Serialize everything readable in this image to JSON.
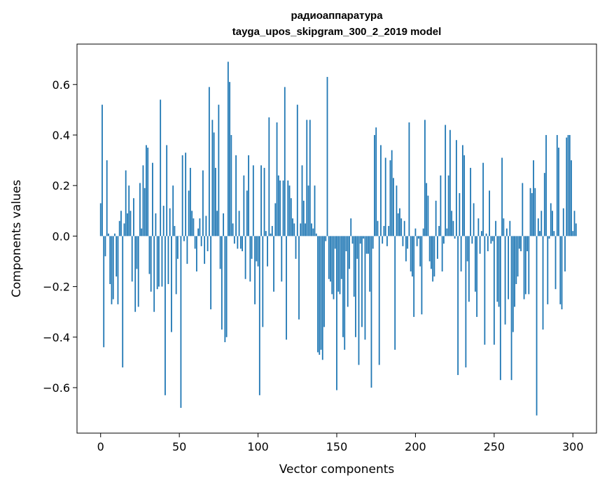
{
  "chart_data": {
    "type": "bar",
    "title": "радиоаппаратура",
    "subtitle": "tayga_upos_skipgram_300_2_2019 model",
    "xlabel": "Vector components",
    "ylabel": "Components values",
    "xlim": [
      -15,
      315
    ],
    "ylim": [
      -0.78,
      0.76
    ],
    "xticks": [
      0,
      50,
      100,
      150,
      200,
      250,
      300
    ],
    "yticks": [
      -0.6,
      -0.4,
      -0.2,
      0.0,
      0.2,
      0.4,
      0.6
    ],
    "xtick_labels": [
      "0",
      "50",
      "100",
      "150",
      "200",
      "250",
      "300"
    ],
    "ytick_labels": [
      "−0.6",
      "−0.4",
      "−0.2",
      "0.0",
      "0.2",
      "0.4",
      "0.6"
    ],
    "grid": false,
    "bar_color": "#1f77b4",
    "x_start": 0,
    "values": [
      0.13,
      0.52,
      -0.44,
      -0.08,
      0.3,
      0.01,
      -0.19,
      -0.27,
      -0.25,
      0.01,
      -0.16,
      -0.27,
      0.06,
      0.1,
      -0.52,
      0.05,
      0.26,
      0.09,
      0.2,
      0.1,
      -0.18,
      0.15,
      -0.3,
      -0.13,
      -0.28,
      0.21,
      0.03,
      0.28,
      0.19,
      0.36,
      0.35,
      -0.15,
      -0.22,
      0.29,
      -0.3,
      0.09,
      -0.21,
      -0.2,
      0.54,
      -0.2,
      0.12,
      -0.63,
      0.36,
      -0.19,
      0.11,
      -0.38,
      0.2,
      0.04,
      -0.23,
      -0.09,
      0.0,
      -0.68,
      0.32,
      -0.02,
      0.33,
      -0.11,
      0.18,
      0.27,
      0.1,
      0.07,
      -0.05,
      -0.14,
      0.03,
      0.07,
      -0.04,
      0.26,
      -0.11,
      0.08,
      -0.06,
      0.59,
      -0.29,
      0.46,
      0.41,
      0.27,
      0.1,
      0.52,
      -0.13,
      -0.37,
      0.09,
      -0.42,
      -0.4,
      0.69,
      0.61,
      0.4,
      0.05,
      -0.03,
      0.32,
      -0.05,
      0.1,
      -0.05,
      -0.06,
      0.24,
      -0.17,
      0.18,
      0.32,
      -0.18,
      -0.09,
      0.28,
      -0.27,
      -0.1,
      -0.12,
      -0.63,
      0.28,
      -0.36,
      0.27,
      0.02,
      -0.12,
      0.47,
      0.01,
      0.04,
      -0.22,
      0.13,
      0.45,
      0.24,
      0.22,
      -0.18,
      0.22,
      0.59,
      -0.41,
      0.22,
      0.2,
      0.15,
      0.07,
      0.05,
      -0.09,
      0.52,
      -0.33,
      0.05,
      0.28,
      0.14,
      0.05,
      0.46,
      0.2,
      0.46,
      0.05,
      0.03,
      0.2,
      0.01,
      -0.46,
      -0.47,
      -0.45,
      -0.49,
      -0.36,
      -0.02,
      0.63,
      -0.17,
      -0.18,
      -0.23,
      -0.25,
      -0.05,
      -0.61,
      -0.22,
      -0.23,
      -0.17,
      -0.4,
      -0.45,
      -0.06,
      -0.28,
      -0.13,
      0.07,
      -0.03,
      -0.24,
      -0.4,
      -0.09,
      -0.51,
      -0.03,
      -0.36,
      -0.01,
      -0.41,
      -0.07,
      -0.07,
      -0.22,
      -0.6,
      -0.05,
      0.4,
      0.43,
      0.06,
      -0.51,
      0.36,
      -0.03,
      0.04,
      0.31,
      -0.04,
      0.04,
      0.3,
      0.34,
      0.23,
      -0.45,
      0.2,
      0.09,
      0.11,
      0.07,
      -0.04,
      0.06,
      -0.1,
      -0.05,
      0.45,
      -0.14,
      -0.16,
      -0.32,
      0.03,
      -0.04,
      -0.01,
      -0.12,
      -0.31,
      0.03,
      0.46,
      0.21,
      0.16,
      -0.1,
      -0.13,
      -0.18,
      -0.16,
      0.14,
      -0.09,
      0.04,
      0.24,
      -0.14,
      -0.03,
      0.44,
      0.03,
      0.24,
      0.42,
      0.1,
      0.06,
      -0.01,
      0.38,
      -0.55,
      0.17,
      -0.14,
      0.36,
      0.32,
      -0.52,
      -0.1,
      -0.26,
      0.27,
      -0.03,
      0.13,
      -0.22,
      -0.32,
      0.07,
      -0.07,
      0.02,
      0.29,
      -0.43,
      0.01,
      -0.06,
      0.18,
      -0.03,
      -0.02,
      -0.43,
      0.06,
      -0.26,
      -0.28,
      -0.57,
      0.31,
      0.07,
      -0.35,
      0.03,
      -0.25,
      0.06,
      -0.57,
      -0.38,
      -0.28,
      -0.19,
      -0.16,
      -0.05,
      -0.06,
      0.21,
      -0.25,
      -0.23,
      -0.06,
      -0.23,
      0.19,
      0.17,
      0.3,
      0.19,
      -0.71,
      0.07,
      0.02,
      0.1,
      -0.37,
      0.25,
      0.4,
      -0.27,
      -0.01,
      0.13,
      0.1,
      0.02,
      -0.21,
      0.4,
      0.35,
      -0.27,
      -0.29,
      0.11,
      -0.14,
      0.39,
      0.4,
      0.4,
      0.3,
      0.02,
      0.1,
      0.05
    ]
  }
}
